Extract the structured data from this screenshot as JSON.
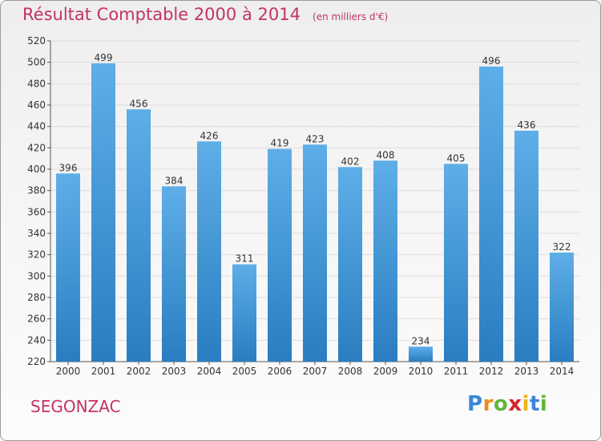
{
  "title": "Résultat Comptable 2000 à 2014",
  "unit": "(en milliers d'€)",
  "commune": "SEGONZAC",
  "logo": {
    "text": "Proxiti",
    "letters": [
      {
        "ch": "P",
        "color": "#3a86d6"
      },
      {
        "ch": "r",
        "color": "#f08a17"
      },
      {
        "ch": "o",
        "color": "#62b53b"
      },
      {
        "ch": "x",
        "color": "#d8232a"
      },
      {
        "ch": "i",
        "color": "#f0b318"
      },
      {
        "ch": "t",
        "color": "#3a86d6"
      },
      {
        "ch": "i",
        "color": "#62b53b"
      }
    ]
  },
  "colors": {
    "bar_top": "#5eaee8",
    "bar_bottom": "#2a7dc0",
    "title": "#c3345f",
    "grid": "#dddddd"
  },
  "chart_data": {
    "type": "bar",
    "title": "Résultat Comptable 2000 à 2014",
    "xlabel": "",
    "ylabel": "",
    "categories": [
      "2000",
      "2001",
      "2002",
      "2003",
      "2004",
      "2005",
      "2006",
      "2007",
      "2008",
      "2009",
      "2010",
      "2011",
      "2012",
      "2013",
      "2014"
    ],
    "values": [
      396,
      499,
      456,
      384,
      426,
      311,
      419,
      423,
      402,
      408,
      234,
      405,
      496,
      436,
      322
    ],
    "ylim": [
      220,
      520
    ],
    "yticks": [
      220,
      240,
      260,
      280,
      300,
      320,
      340,
      360,
      380,
      400,
      420,
      440,
      460,
      480,
      500,
      520
    ],
    "grid": true,
    "data_labels": true
  }
}
